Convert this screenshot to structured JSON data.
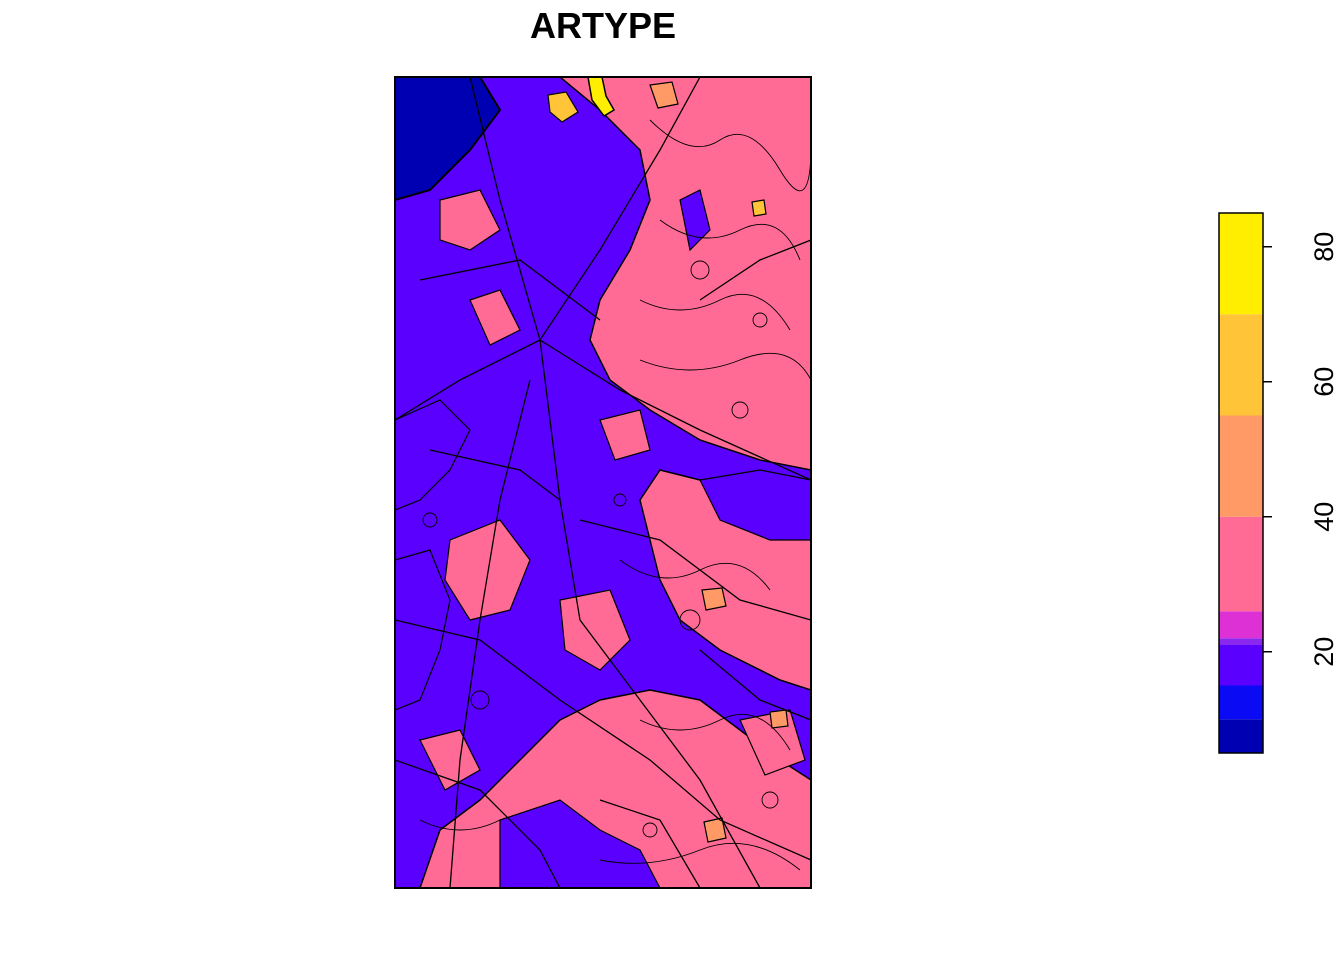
{
  "title": "ARTYPE",
  "legend": {
    "min": 5,
    "max": 85,
    "ticks": [
      20,
      40,
      60,
      80
    ],
    "bands": [
      {
        "from": 5,
        "to": 10,
        "color": "#0000b3"
      },
      {
        "from": 10,
        "to": 15,
        "color": "#0a0af5"
      },
      {
        "from": 15,
        "to": 21,
        "color": "#5a00ff"
      },
      {
        "from": 21,
        "to": 22,
        "color": "#8a28ef"
      },
      {
        "from": 22,
        "to": 26,
        "color": "#dd30d5"
      },
      {
        "from": 26,
        "to": 40,
        "color": "#ff6b94"
      },
      {
        "from": 40,
        "to": 55,
        "color": "#ff9966"
      },
      {
        "from": 55,
        "to": 70,
        "color": "#ffc438"
      },
      {
        "from": 70,
        "to": 85,
        "color": "#ffee00"
      }
    ]
  },
  "map_colors": {
    "forest": "#ff6b94",
    "built": "#5a00ff",
    "dense": "#0000b3",
    "orange": "#ff9966",
    "gold": "#ffc438",
    "yellow": "#ffee00",
    "outline": "#000000"
  }
}
